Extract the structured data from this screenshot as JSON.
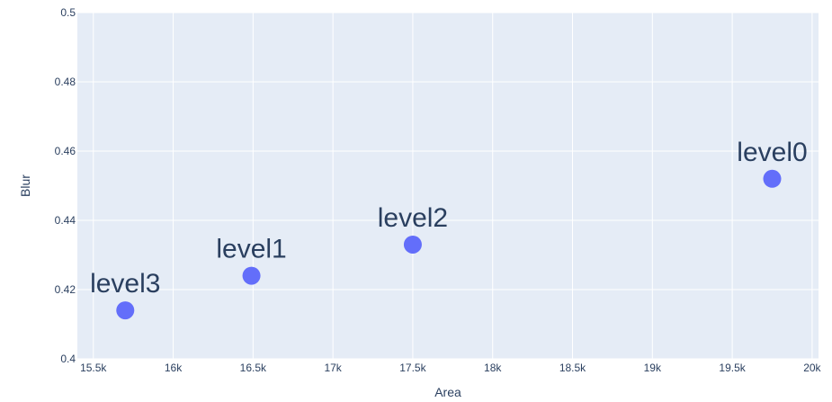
{
  "chart_data": {
    "type": "scatter",
    "xlabel": "Area",
    "ylabel": "Blur",
    "xlim": [
      15400,
      20040
    ],
    "ylim": [
      0.4,
      0.5
    ],
    "x_ticks": [
      15500,
      16000,
      16500,
      17000,
      17500,
      18000,
      18500,
      19000,
      19500,
      20000
    ],
    "x_tick_labels": [
      "15.5k",
      "16k",
      "16.5k",
      "17k",
      "17.5k",
      "18k",
      "18.5k",
      "19k",
      "19.5k",
      "20k"
    ],
    "y_ticks": [
      0.4,
      0.42,
      0.44,
      0.46,
      0.48,
      0.5
    ],
    "y_tick_labels": [
      "0.4",
      "0.42",
      "0.44",
      "0.46",
      "0.48",
      "0.5"
    ],
    "grid": true,
    "plot_bgcolor": "#e5ecf6",
    "grid_color": "#ffffff",
    "marker_color": "#636efa",
    "text_color": "#2a3f5f",
    "points": [
      {
        "label": "level0",
        "x": 19750,
        "y": 0.452
      },
      {
        "label": "level1",
        "x": 16490,
        "y": 0.424
      },
      {
        "label": "level2",
        "x": 17500,
        "y": 0.433
      },
      {
        "label": "level3",
        "x": 15700,
        "y": 0.414
      }
    ]
  }
}
